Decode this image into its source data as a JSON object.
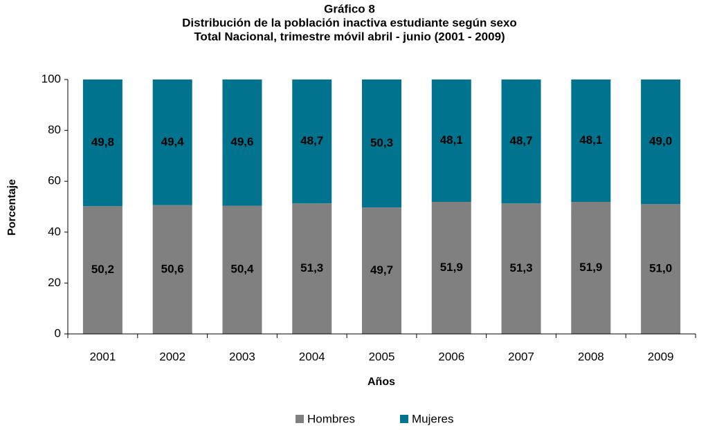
{
  "chart_data": {
    "type": "stacked_bar",
    "title": [
      "Gráfico 8",
      "Distribución de la población inactiva estudiante según sexo",
      "Total Nacional, trimestre móvil abril - junio (2001 - 2009)"
    ],
    "x_label": "Años",
    "y_label": "Porcentaje",
    "categories": [
      "2001",
      "2002",
      "2003",
      "2004",
      "2005",
      "2006",
      "2007",
      "2008",
      "2009"
    ],
    "series": [
      {
        "name": "Hombres",
        "color": "#808080",
        "values": [
          50.2,
          50.6,
          50.4,
          51.3,
          49.7,
          51.9,
          51.3,
          51.9,
          51.0
        ],
        "value_labels": [
          "50,2",
          "50,6",
          "50,4",
          "51,3",
          "49,7",
          "51,9",
          "51,3",
          "51,9",
          "51,0"
        ]
      },
      {
        "name": "Mujeres",
        "color": "#00748f",
        "values": [
          49.8,
          49.4,
          49.6,
          48.7,
          50.3,
          48.1,
          48.7,
          48.1,
          49.0
        ],
        "value_labels": [
          "49,8",
          "49,4",
          "49,6",
          "48,7",
          "50,3",
          "48,1",
          "48,7",
          "48,1",
          "49,0"
        ]
      }
    ],
    "ylim": [
      0,
      100
    ],
    "yticks": [
      0,
      20,
      40,
      60,
      80,
      100
    ],
    "grid": false,
    "legend": "bottom"
  }
}
